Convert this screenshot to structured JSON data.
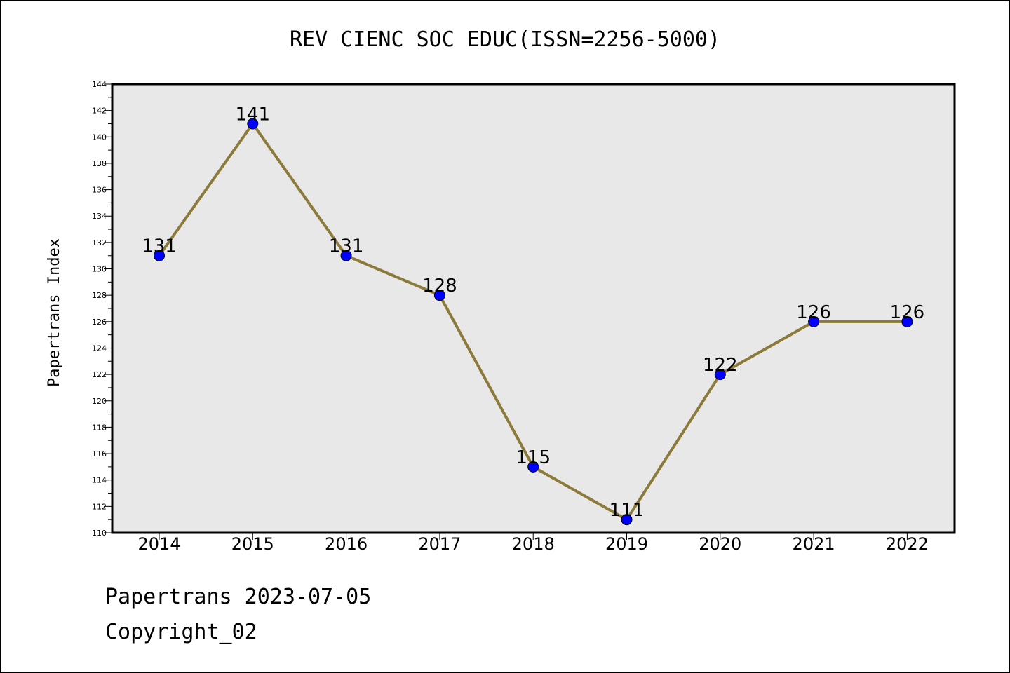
{
  "chart_data": {
    "type": "line",
    "title": "REV CIENC SOC EDUC(ISSN=2256-5000)",
    "xlabel": "",
    "ylabel": "Papertrans Index",
    "categories": [
      "2014",
      "2015",
      "2016",
      "2017",
      "2018",
      "2019",
      "2020",
      "2021",
      "2022"
    ],
    "values": [
      131,
      141,
      131,
      128,
      115,
      111,
      122,
      126,
      126
    ],
    "data_labels": [
      "131",
      "141",
      "131",
      "128",
      "115",
      "111",
      "122",
      "126",
      "126"
    ],
    "ylim": [
      110,
      144
    ],
    "yticks": [
      "110",
      "112",
      "114",
      "116",
      "118",
      "120",
      "122",
      "124",
      "126",
      "128",
      "130",
      "132",
      "134",
      "136",
      "138",
      "140",
      "142",
      "144"
    ],
    "grid": false,
    "legend": "none",
    "colors": {
      "line": "#8c7a3a",
      "marker": "#0000ff",
      "plot_background": "#e8e8e8"
    }
  },
  "footer": {
    "line1": "Papertrans 2023-07-05",
    "line2": "Copyright_02"
  }
}
